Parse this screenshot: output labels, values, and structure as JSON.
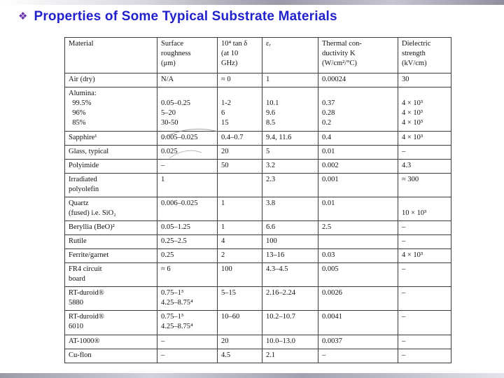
{
  "colors": {
    "title": "#2222cc",
    "bullet": "#6633aa",
    "table_border": "#3a3a3a",
    "text": "#111111"
  },
  "slide": {
    "bullet": "❖",
    "title": "Properties  of Some Typical Substrate Materials"
  },
  "table": {
    "headers": [
      "Material",
      "Surface\nroughness\n(μm)",
      "10⁴ tan δ\n(at 10\nGHz)",
      "εᵣ",
      "Thermal con-\nductivity K\n(W/cm²/°C)",
      "Dielectric\nstrength\n(kV/cm)"
    ],
    "rows": [
      [
        "Air (dry)",
        "N/A",
        "≈ 0",
        "1",
        "0.00024",
        "30"
      ],
      [
        "Alumina:\n  99.5%\n  96%\n  85%",
        "\n0.05–0.25\n5–20\n30-50",
        "\n1-2\n6\n15",
        "\n10.1\n9.6\n8.5",
        "\n0.37\n0.28\n0.2",
        "\n4 × 10³\n4 × 10³\n4 × 10³"
      ],
      [
        "Sapphire¹",
        "0.005–0.025",
        "0.4–0.7",
        "9.4, 11.6",
        "0.4",
        "4 × 10³"
      ],
      [
        "Glass, typical",
        "0.025",
        "20",
        "5",
        "0.01",
        "–"
      ],
      [
        "Polyimide",
        "–",
        "50",
        "3.2",
        "0.002",
        "4.3"
      ],
      [
        "Irradiated\npolyolefin",
        "1",
        "",
        "2.3",
        "0.001",
        "≈ 300"
      ],
      [
        "Quartz\n(fused) i.e. SiO₂",
        "0.006–0.025",
        "1",
        "3.8",
        "0.01",
        "\n10 × 10³"
      ],
      [
        "Beryllia (BeO)²",
        "0.05–1.25",
        "1",
        "6.6",
        "2.5",
        "–"
      ],
      [
        "Rutile",
        "0.25–2.5",
        "4",
        "100",
        "",
        "–"
      ],
      [
        "Ferrite/garnet",
        "0.25",
        "2",
        "13–16",
        "0.03",
        "4 × 10³"
      ],
      [
        "FR4 circuit\nboard",
        "≈ 6",
        "100",
        "4.3–4.5",
        "0.005",
        "–"
      ],
      [
        "RT-duroid®\n5880",
        "0.75–1³\n4.25–8.75⁴",
        "5–15",
        "2.16–2.24",
        "0.0026",
        "–"
      ],
      [
        "RT-duroid®\n6010",
        "0.75–1³\n4.25–8.75⁴",
        "10–60",
        "10.2–10.7",
        "0.0041",
        "–"
      ],
      [
        "AT-1000®",
        "–",
        "20",
        "10.0–13.0",
        "0.0037",
        "–"
      ],
      [
        "Cu-flon",
        "–",
        "4.5",
        "2.1",
        "–",
        "–"
      ]
    ]
  }
}
